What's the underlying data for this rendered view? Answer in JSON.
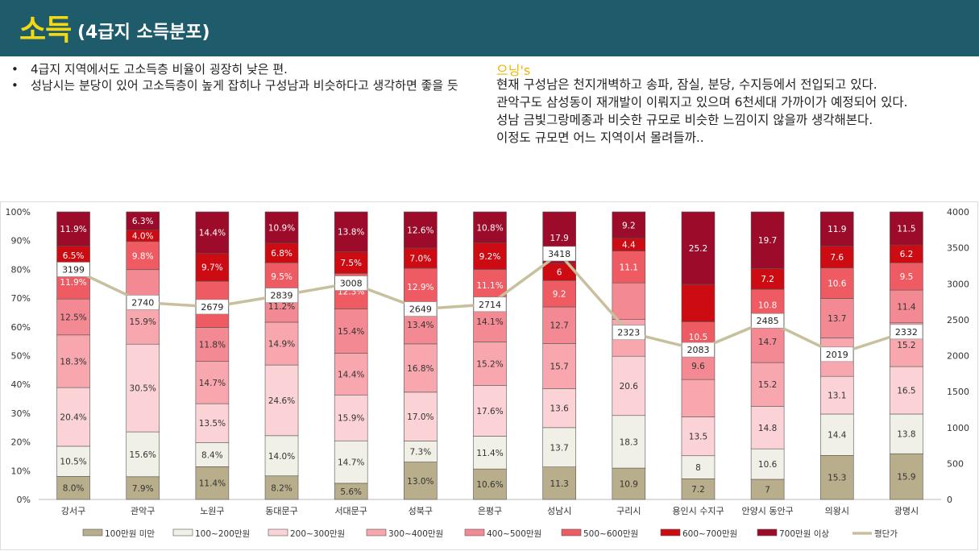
{
  "header": {
    "title_main": "소득",
    "title_sub": "(4급지 소득분포)"
  },
  "bullets": [
    "4급지 지역에서도 고소득층 비율이 굉장히 낮은 편.",
    "성남시는 분당이 있어 고소득층이 높게 잡히나 구성남과 비슷하다고 생각하면 좋을 듯"
  ],
  "comment": {
    "title": "으닝's",
    "lines": [
      "현재 구성남은 천지개벽하고 송파, 잠실, 분당, 수지등에서 전입되고 있다.",
      "관악구도 삼성동이 재개발이 이뤄지고 있으며 6천세대 가까이가 예정되어 있다.",
      "성남 금빛그랑메종과 비슷한 규모로 비슷한 느낌이지 않을까 생각해본다.",
      "이정도 규모면 어느 지역이서 몰려들까.."
    ]
  },
  "chart_data": {
    "type": "bar",
    "stacked": true,
    "percent": true,
    "categories": [
      "강서구",
      "관악구",
      "노원구",
      "동대문구",
      "서대문구",
      "성북구",
      "은평구",
      "성남시",
      "구리시",
      "용인시 수지구",
      "안양시 동안구",
      "의왕시",
      "광명시"
    ],
    "series": [
      {
        "name": "100만원 미만",
        "color": "#b9ae8c",
        "values": [
          8.0,
          7.9,
          11.4,
          8.2,
          5.6,
          13.0,
          10.6,
          11.3,
          10.9,
          7.2,
          7,
          15.3,
          15.9
        ],
        "labels": [
          "8.0%",
          "7.9%",
          "11.4%",
          "8.2%",
          "5.6%",
          "13.0%",
          "10.6%",
          "11.3",
          "10.9",
          "7.2",
          "7",
          "15.3",
          "15.9"
        ]
      },
      {
        "name": "100~200만원",
        "color": "#f1f0e6",
        "values": [
          10.5,
          15.6,
          8.4,
          14.0,
          14.7,
          7.3,
          11.4,
          13.7,
          18.3,
          8,
          10.6,
          14.4,
          13.8
        ],
        "labels": [
          "10.5%",
          "15.6%",
          "8.4%",
          "14.0%",
          "14.7%",
          "7.3%",
          "11.4%",
          "13.7",
          "18.3",
          "8",
          "10.6",
          "14.4",
          "13.8"
        ]
      },
      {
        "name": "200~300만원",
        "color": "#fbd3d6",
        "values": [
          20.4,
          30.5,
          13.5,
          24.6,
          15.9,
          17.0,
          17.6,
          13.6,
          20.6,
          13.5,
          14.8,
          13.1,
          16.5
        ],
        "labels": [
          "20.4%",
          "30.5%",
          "13.5%",
          "24.6%",
          "15.9%",
          "17.0%",
          "17.6%",
          "13.6",
          "20.6",
          "13.5",
          "14.8",
          "13.1",
          "16.5"
        ]
      },
      {
        "name": "300~400만원",
        "color": "#f7a7ad",
        "values": [
          18.3,
          15.9,
          14.7,
          14.9,
          14.4,
          16.8,
          15.2,
          15.7,
          null,
          null,
          15.2,
          null,
          15.2
        ],
        "labels": [
          "18.3%",
          "15.9%",
          "14.7%",
          "14.9%",
          "14.4%",
          "16.8%",
          "15.2%",
          "15.7",
          "",
          "",
          "15.2",
          "",
          "15.2"
        ]
      },
      {
        "name": "400~500만원",
        "color": "#f38a93",
        "values": [
          12.5,
          null,
          11.8,
          11.2,
          15.4,
          13.4,
          14.1,
          12.7,
          null,
          9.6,
          14.7,
          13.7,
          11.4
        ],
        "labels": [
          "12.5%",
          "",
          "11.8%",
          "11.2%",
          "15.4%",
          "13.4%",
          "14.1%",
          "12.7",
          "",
          "9.6",
          "14.7",
          "13.7",
          "11.4"
        ]
      },
      {
        "name": "500~600만원",
        "color": "#ee5b62",
        "values": [
          11.9,
          9.8,
          null,
          9.5,
          12.3,
          12.9,
          11.1,
          9.2,
          11.1,
          10.5,
          10.8,
          10.6,
          9.5
        ],
        "labels": [
          "11.9%",
          "9.8%",
          "",
          "9.5%",
          "12.3%",
          "12.9%",
          "11.1%",
          "9.2",
          "11.1",
          "10.5",
          "10.8",
          "10.6",
          "9.5"
        ]
      },
      {
        "name": "600~700만원",
        "color": "#cc0b13",
        "values": [
          6.5,
          4.0,
          9.7,
          6.8,
          7.5,
          7.0,
          9.2,
          6,
          4.4,
          null,
          7.2,
          7.6,
          6.2
        ],
        "labels": [
          "6.5%",
          "4.0%",
          "9.7%",
          "6.8%",
          "7.5%",
          "7.0%",
          "9.2%",
          "6",
          "4.4",
          "",
          "7.2",
          "7.6",
          "6.2"
        ]
      },
      {
        "name": "700만원 이상",
        "color": "#9c0b2a",
        "values": [
          11.9,
          6.3,
          14.4,
          10.9,
          13.8,
          12.6,
          10.8,
          17.9,
          9.2,
          25.2,
          19.7,
          11.9,
          11.5
        ],
        "labels": [
          "11.9%",
          "6.3%",
          "14.4%",
          "10.9%",
          "13.8%",
          "12.6%",
          "10.8%",
          "17.9",
          "9.2",
          "25.2",
          "19.7",
          "11.9",
          "11.5"
        ]
      }
    ],
    "line": {
      "name": "평단가",
      "color": "#c8bf9c",
      "values": [
        3199,
        2740,
        2679,
        2839,
        3008,
        2649,
        2714,
        3418,
        2323,
        2083,
        2485,
        2019,
        2332
      ]
    },
    "y_left": {
      "min": 0,
      "max": 100,
      "ticks": [
        "0%",
        "10%",
        "20%",
        "30%",
        "40%",
        "50%",
        "60%",
        "70%",
        "80%",
        "90%",
        "100%"
      ]
    },
    "y_right": {
      "min": 0,
      "max": 4000,
      "ticks": [
        "0",
        "500",
        "1000",
        "1500",
        "2000",
        "2500",
        "3000",
        "3500",
        "4000"
      ]
    },
    "legend_position": "bottom"
  }
}
